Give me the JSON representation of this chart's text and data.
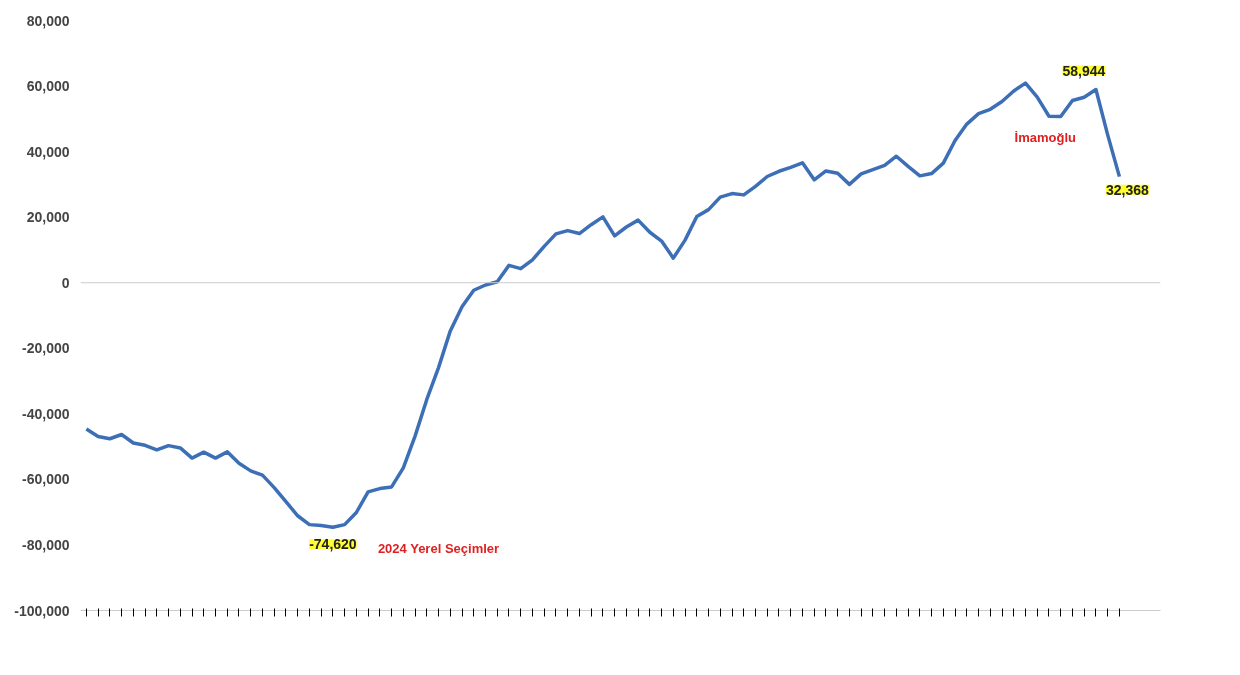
{
  "chart_data": {
    "type": "line",
    "categories": [
      null,
      null,
      null,
      null,
      null,
      null,
      null,
      null,
      null,
      null,
      null,
      null,
      null,
      null,
      null,
      null,
      null,
      null,
      null,
      null,
      null,
      null,
      null,
      null,
      null,
      null,
      null,
      null,
      null,
      null,
      null,
      null,
      null,
      null,
      null,
      null,
      null,
      null,
      null,
      null,
      null,
      null,
      null,
      null,
      null,
      null,
      null,
      null,
      null,
      null,
      null,
      null,
      null,
      null,
      null,
      null,
      null,
      null,
      null,
      null,
      null,
      null,
      null,
      null,
      null,
      null,
      null,
      null,
      null,
      null,
      null,
      null,
      null,
      null,
      null,
      null,
      null,
      null,
      null,
      null,
      null,
      null,
      null,
      null,
      null,
      null,
      null,
      null,
      null
    ],
    "series": [
      {
        "color": "#3d6fb6",
        "values": [
          -44600,
          -46900,
          -47600,
          -46300,
          -48900,
          -49600,
          -51000,
          -49700,
          -50400,
          -53500,
          -51700,
          -53500,
          -51600,
          -55100,
          -57400,
          -58700,
          -62500,
          -66800,
          -71100,
          -73800,
          -74100,
          -74620,
          -73800,
          -70100,
          -63800,
          -62800,
          -62300,
          -56500,
          -46800,
          -35600,
          -25900,
          -14700,
          -7300,
          -2300,
          -700,
          300,
          5300,
          4300,
          7000,
          11100,
          14900,
          15900,
          15000,
          17700,
          20100,
          14300,
          17000,
          19100,
          15400,
          12700,
          7500,
          13000,
          20200,
          22300,
          26100,
          27200,
          26800,
          29400,
          32400,
          34000,
          35200,
          36600,
          31400,
          34100,
          33400,
          30000,
          33200,
          34500,
          35800,
          38600,
          35500,
          32600,
          33300,
          36500,
          43400,
          48400,
          51600,
          52900,
          55300,
          58500,
          60900,
          56600,
          50800,
          50700,
          55600,
          56600,
          58944,
          45100,
          32368
        ]
      }
    ],
    "ylim": [
      -100000,
      80000
    ],
    "yticks": [
      {
        "value": -100000,
        "label": "-100,000"
      },
      {
        "value": -80000,
        "label": "-80,000"
      },
      {
        "value": -60000,
        "label": "-60,000"
      },
      {
        "value": -40000,
        "label": "-40,000"
      },
      {
        "value": -20000,
        "label": "-20,000"
      },
      0,
      {
        "value": 20000,
        "label": "20,000"
      },
      {
        "value": 40000,
        "label": "40,000"
      },
      {
        "value": 60000,
        "label": "60,000"
      },
      {
        "value": 80000,
        "label": "80,000"
      }
    ],
    "ref_lines": [
      {
        "axis": "y",
        "value": 0,
        "color": "#cccccc"
      }
    ],
    "grid": false,
    "marker": "none",
    "line_style": "solid",
    "annotations": [
      "-74,620",
      "2024 Yerel Seçimler",
      "58,944",
      "İmamoğlu",
      "32,368"
    ]
  }
}
